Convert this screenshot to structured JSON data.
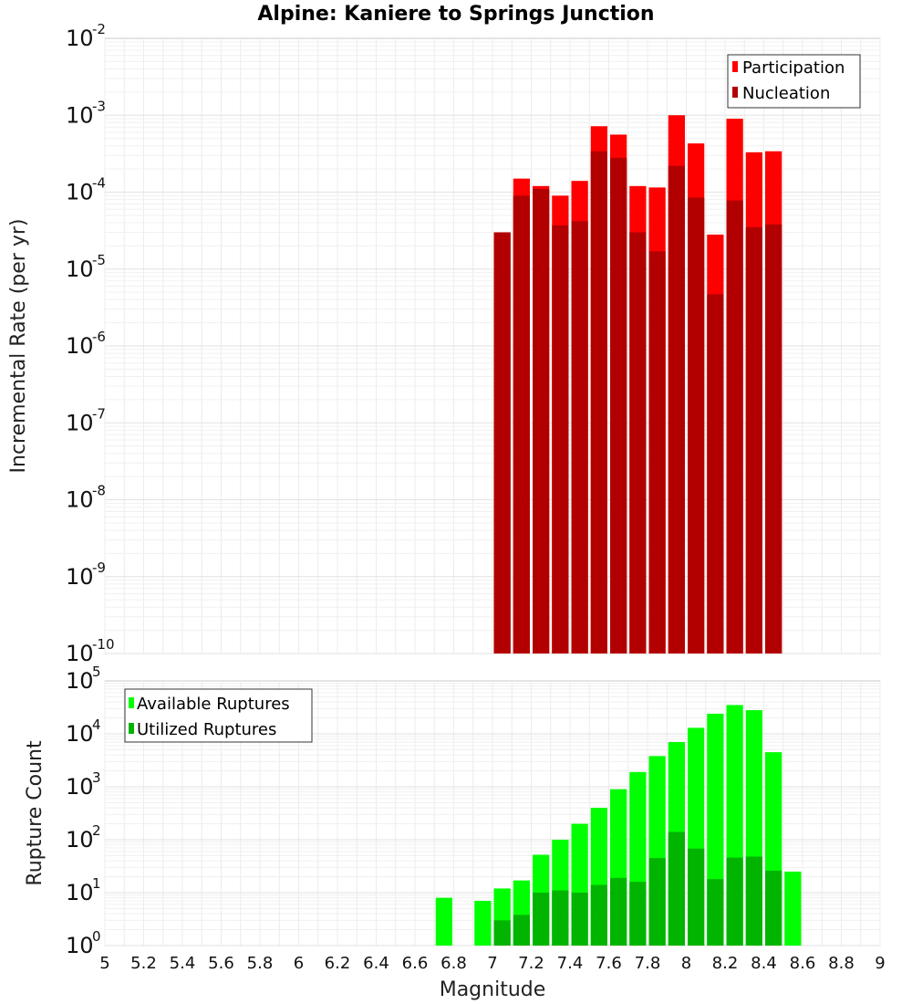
{
  "chart_data": [
    {
      "type": "bar",
      "title": "Alpine: Kaniere to Springs Junction",
      "xlabel": "",
      "ylabel": "Incremental Rate (per yr)",
      "yscale": "log",
      "ylim_exponents": [
        -10,
        -2
      ],
      "xlim": [
        5,
        9
      ],
      "grid": true,
      "legend_position": "top-right",
      "legend": [
        "Participation",
        "Nucleation"
      ],
      "x": [
        7.05,
        7.15,
        7.25,
        7.35,
        7.45,
        7.55,
        7.65,
        7.75,
        7.85,
        7.95,
        8.05,
        8.15,
        8.25,
        8.35,
        8.45
      ],
      "series": [
        {
          "name": "Participation",
          "color": "#ff0000",
          "values": [
            3e-05,
            0.00015,
            0.00012,
            9e-05,
            0.00014,
            0.00072,
            0.00056,
            0.00012,
            0.000115,
            0.001,
            0.00043,
            2.8e-05,
            0.0009,
            0.00033,
            0.00034
          ]
        },
        {
          "name": "Nucleation",
          "color": "#b20000",
          "values": [
            3e-05,
            9e-05,
            0.00011,
            3.7e-05,
            4.2e-05,
            0.00034,
            0.00028,
            3e-05,
            1.7e-05,
            0.00022,
            8.5e-05,
            4.7e-06,
            7.8e-05,
            3.5e-05,
            3.8e-05
          ]
        }
      ]
    },
    {
      "type": "bar",
      "title": "",
      "xlabel": "Magnitude",
      "ylabel": "Rupture Count",
      "yscale": "log",
      "ylim_exponents": [
        0,
        5
      ],
      "xlim": [
        5,
        9
      ],
      "grid": true,
      "legend_position": "top-left",
      "legend": [
        "Available Ruptures",
        "Utilized Ruptures"
      ],
      "x": [
        6.75,
        6.95,
        7.05,
        7.15,
        7.25,
        7.35,
        7.45,
        7.55,
        7.65,
        7.75,
        7.85,
        7.95,
        8.05,
        8.15,
        8.25,
        8.35,
        8.45,
        8.55
      ],
      "series": [
        {
          "name": "Available Ruptures",
          "color": "#00ff00",
          "values": [
            8,
            7,
            12,
            17,
            52,
            100,
            200,
            400,
            900,
            1900,
            3800,
            7000,
            13000,
            24000,
            35000,
            28000,
            4500,
            25
          ]
        },
        {
          "name": "Utilized Ruptures",
          "color": "#00b400",
          "values": [
            null,
            null,
            3,
            3.8,
            10,
            11,
            10,
            14,
            19,
            16,
            45,
            140,
            68,
            18,
            46,
            48,
            26,
            null
          ]
        }
      ]
    }
  ],
  "x_ticks": [
    "5",
    "5.2",
    "5.4",
    "5.6",
    "5.8",
    "6",
    "6.2",
    "6.4",
    "6.6",
    "6.8",
    "7",
    "7.2",
    "7.4",
    "7.6",
    "7.8",
    "8",
    "8.2",
    "8.4",
    "8.6",
    "8.8",
    "9"
  ],
  "tick_base": "10"
}
